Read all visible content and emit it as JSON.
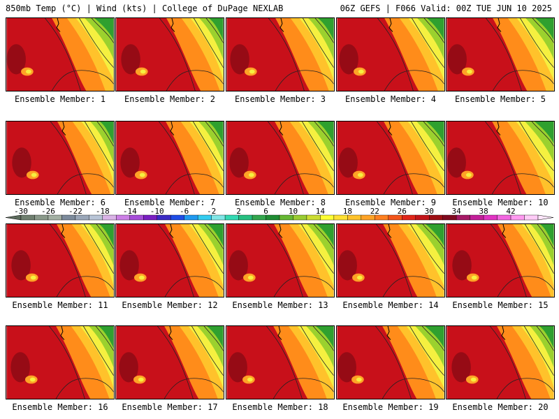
{
  "header": {
    "left": "850mb Temp (°C) | Wind (kts) | College of DuPage NEXLAB",
    "right": "06Z GEFS | F066 Valid: 00Z TUE JUN 10 2025"
  },
  "panels": [
    {
      "label": "Ensemble Member: 1"
    },
    {
      "label": "Ensemble Member: 2"
    },
    {
      "label": "Ensemble Member: 3"
    },
    {
      "label": "Ensemble Member: 4"
    },
    {
      "label": "Ensemble Member: 5"
    },
    {
      "label": "Ensemble Member: 6"
    },
    {
      "label": "Ensemble Member: 7"
    },
    {
      "label": "Ensemble Member: 8"
    },
    {
      "label": "Ensemble Member: 9"
    },
    {
      "label": "Ensemble Member: 10"
    },
    {
      "label": "Ensemble Member: 11"
    },
    {
      "label": "Ensemble Member: 12"
    },
    {
      "label": "Ensemble Member: 13"
    },
    {
      "label": "Ensemble Member: 14"
    },
    {
      "label": "Ensemble Member: 15"
    },
    {
      "label": "Ensemble Member: 16"
    },
    {
      "label": "Ensemble Member: 17"
    },
    {
      "label": "Ensemble Member: 18"
    },
    {
      "label": "Ensemble Member: 19"
    },
    {
      "label": "Ensemble Member: 20"
    }
  ],
  "colorbar": {
    "ticks": [
      "-30",
      "-26",
      "-22",
      "-18",
      "-14",
      "-10",
      "-6",
      "-2",
      "2",
      "6",
      "10",
      "14",
      "18",
      "22",
      "26",
      "30",
      "34",
      "38",
      "42"
    ],
    "colors": [
      "#6f7f6f",
      "#8a998a",
      "#a3b0a3",
      "#7c8a9b",
      "#99a6b8",
      "#b8c4d6",
      "#d9b3e6",
      "#cc80e6",
      "#a64dd9",
      "#7a1fc2",
      "#3b2bc4",
      "#1f4de6",
      "#1f99f0",
      "#33ccf0",
      "#80e6e6",
      "#33d9b3",
      "#26bf80",
      "#33a64d",
      "#1f8c33",
      "#66b833",
      "#99cc33",
      "#ccdd33",
      "#ffff33",
      "#ffe033",
      "#ffc22b",
      "#ffa326",
      "#ff8020",
      "#f2541a",
      "#e0261a",
      "#c2141a",
      "#9e0f14",
      "#800a1f",
      "#a61a66",
      "#c21f99",
      "#e033c2",
      "#f266e0",
      "#ff99f0",
      "#ffccf7"
    ],
    "under_color": "#5c6b5c",
    "over_color": "#ffe6fc"
  },
  "field_colors": {
    "deep": "#c8101a",
    "mid": "#ff8c1a",
    "yellow": "#f5f040",
    "green1": "#9bd12e",
    "green2": "#2fa02f",
    "hot": "#8a0a14",
    "coast": "#000000"
  }
}
